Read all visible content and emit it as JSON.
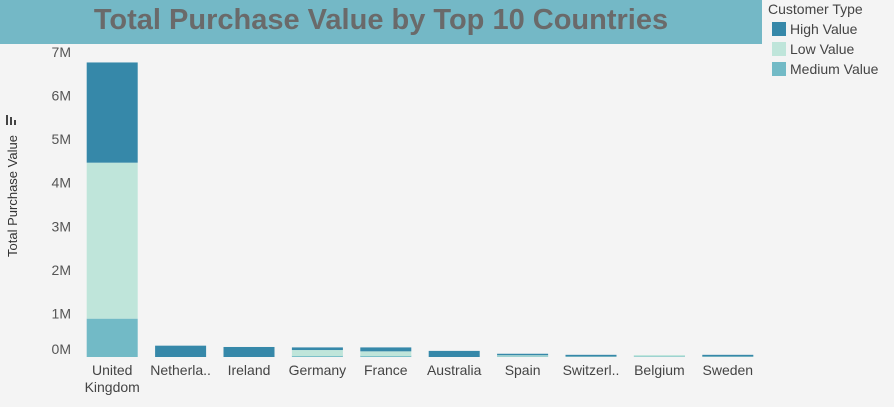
{
  "chart_data": {
    "type": "bar",
    "stacked": true,
    "title": "Total Purchase Value by Top 10 Countries",
    "ylabel": "Total Purchase Value",
    "xlabel": "",
    "categories": [
      "United Kingdom",
      "Netherla..",
      "Ireland",
      "Germany",
      "France",
      "Australia",
      "Spain",
      "Switzerl..",
      "Belgium",
      "Sweden"
    ],
    "category_lines": [
      [
        "United",
        "Kingdom"
      ],
      [
        "Netherla.."
      ],
      [
        "Ireland"
      ],
      [
        "Germany"
      ],
      [
        "France"
      ],
      [
        "Australia"
      ],
      [
        "Spain"
      ],
      [
        "Switzerl.."
      ],
      [
        "Belgium"
      ],
      [
        "Sweden"
      ]
    ],
    "series": [
      {
        "name": "Medium Value",
        "color": "#72bac6",
        "values": [
          880000,
          0,
          0,
          20000,
          20000,
          0,
          10000,
          0,
          10000,
          0
        ]
      },
      {
        "name": "Low Value",
        "color": "#bfe5da",
        "values": [
          3580000,
          0,
          0,
          140000,
          110000,
          0,
          30000,
          10000,
          30000,
          10000
        ]
      },
      {
        "name": "High Value",
        "color": "#3688a9",
        "values": [
          2300000,
          260000,
          230000,
          60000,
          90000,
          140000,
          20000,
          40000,
          0,
          40000
        ]
      }
    ],
    "ylim": [
      0,
      7000000
    ],
    "yticks": [
      {
        "value": 0,
        "label": "0M"
      },
      {
        "value": 1000000,
        "label": "1M"
      },
      {
        "value": 2000000,
        "label": "2M"
      },
      {
        "value": 3000000,
        "label": "3M"
      },
      {
        "value": 4000000,
        "label": "4M"
      },
      {
        "value": 5000000,
        "label": "5M"
      },
      {
        "value": 6000000,
        "label": "6M"
      },
      {
        "value": 7000000,
        "label": "7M"
      }
    ],
    "grid": false,
    "legend": {
      "title": "Customer Type",
      "position": "top-right",
      "entries": [
        {
          "label": "High Value",
          "color": "#3688a9"
        },
        {
          "label": "Low Value",
          "color": "#bfe5da"
        },
        {
          "label": "Medium Value",
          "color": "#72bac6"
        }
      ]
    }
  }
}
